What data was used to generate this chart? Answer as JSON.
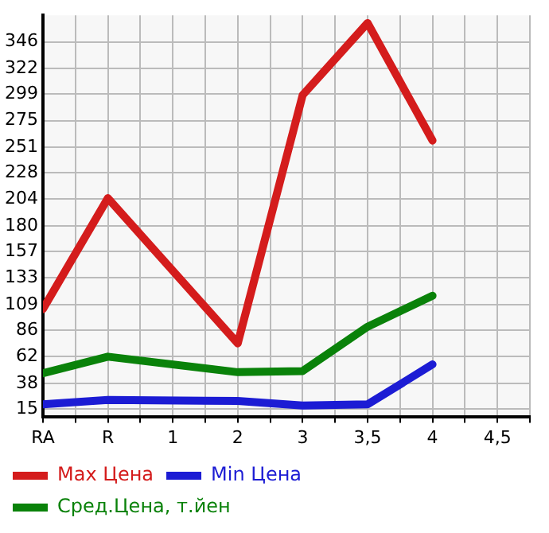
{
  "chart_data": {
    "type": "line",
    "categories": [
      "RA",
      "R",
      "1",
      "2",
      "3",
      "3,5",
      "4",
      "4,5"
    ],
    "series": [
      {
        "name": "Max Цена",
        "color": "#d41c1c",
        "values": [
          105,
          205,
          null,
          74,
          298,
          363,
          257,
          null
        ]
      },
      {
        "name": "Min Цена",
        "color": "#1c1cd4",
        "values": [
          19,
          23,
          null,
          22,
          18,
          19,
          55,
          null
        ]
      },
      {
        "name": "Сред.Цена, т.йен",
        "color": "#0a820a",
        "values": [
          47,
          62,
          null,
          48,
          49,
          89,
          117,
          null
        ]
      }
    ],
    "ylim": [
      8,
      370
    ],
    "yticks": [
      15,
      38,
      62,
      86,
      109,
      133,
      157,
      180,
      204,
      228,
      251,
      275,
      299,
      322,
      346
    ],
    "grid": true,
    "legend": "bottom",
    "marker": "none",
    "line_style": "solid"
  }
}
